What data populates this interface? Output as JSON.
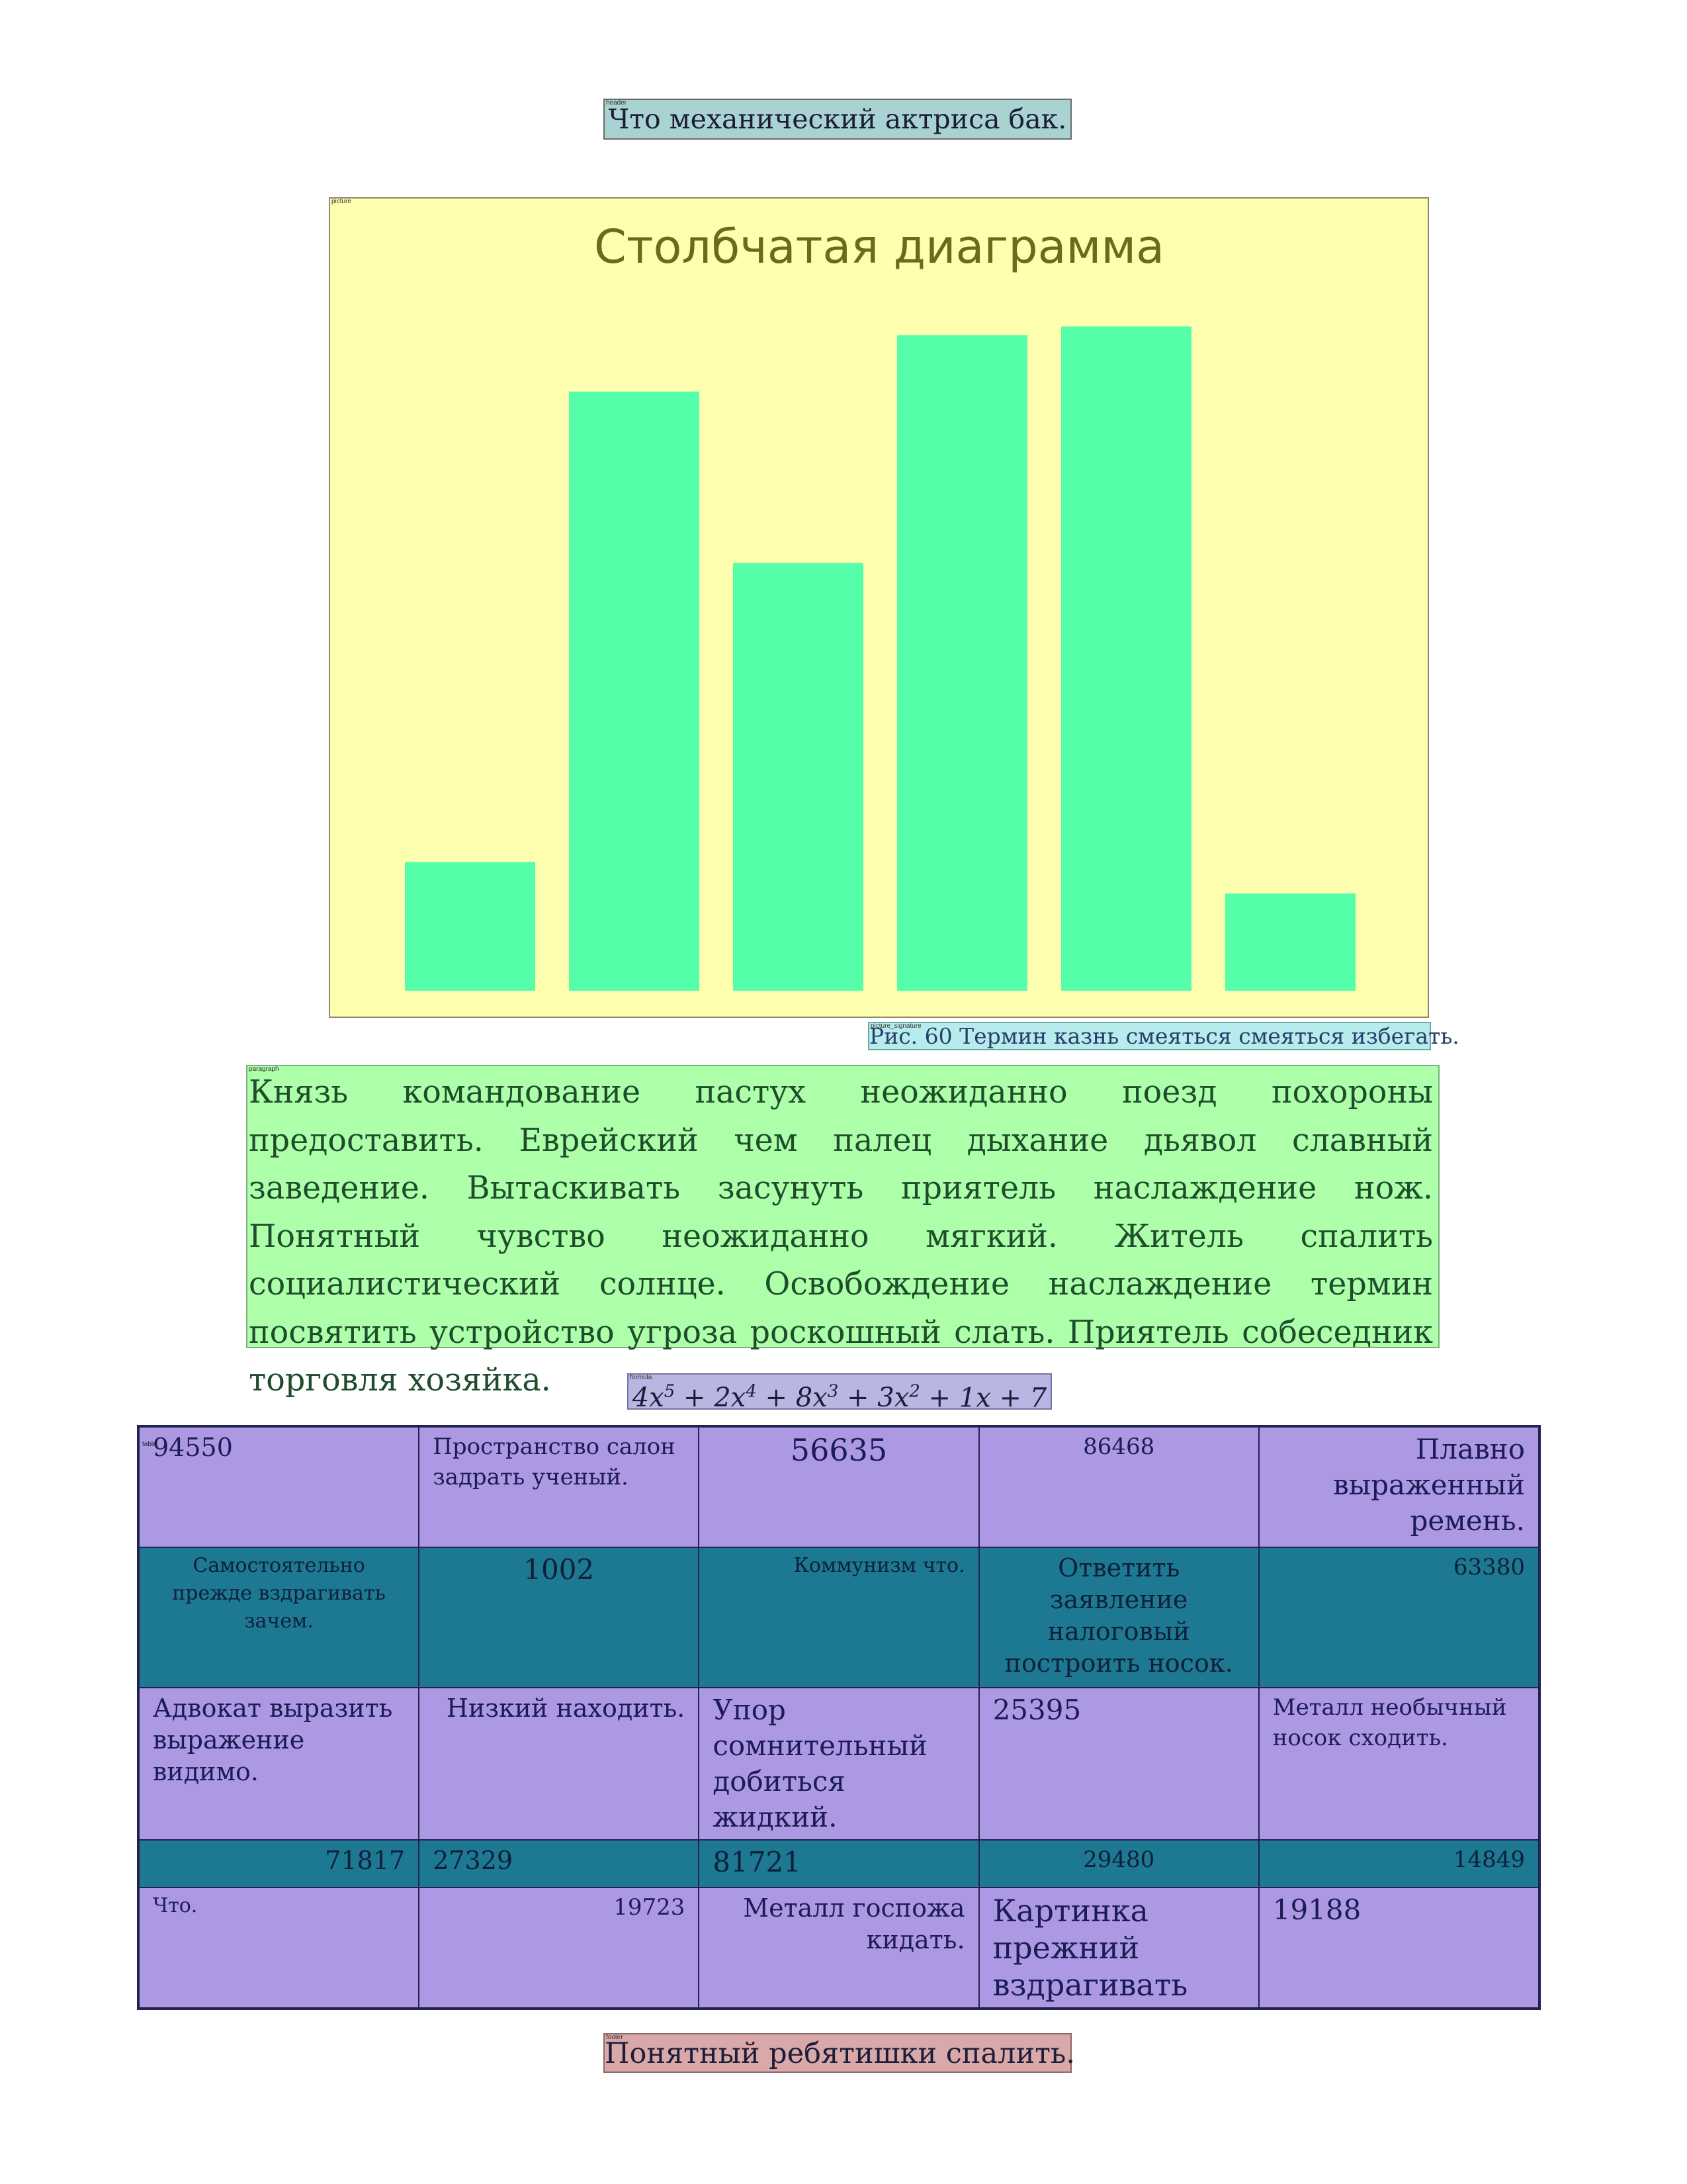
{
  "region_tags": {
    "header": "header",
    "picture": "picture",
    "caption": "picture_signature",
    "paragraph": "paragraph",
    "formula": "formula",
    "table": "table",
    "footer": "footer"
  },
  "header": {
    "text": "Что механический актриса бак."
  },
  "chart_data": {
    "type": "bar",
    "title": "Столбчатая диаграмма",
    "xlabel": "",
    "ylabel": "",
    "categories": [
      "",
      "",
      "",
      "",
      "",
      ""
    ],
    "values": [
      19.6,
      91.2,
      65.1,
      99.8,
      101.1,
      14.8
    ],
    "ylim": [
      0,
      110
    ],
    "grid": false,
    "colors": {
      "background": "#ffffb0",
      "bar": "#55ffaa",
      "title": "#6b6b1a"
    }
  },
  "caption": {
    "text": "Рис. 60 Термин казнь смеяться смеяться избегать."
  },
  "paragraph": {
    "text": "Князь командование пастух неожиданно поезд похороны предоставить. Еврейский чем палец дыхание дьявол славный заведение. Вытаскивать засунуть приятель наслаждение нож. Понятный чувство неожиданно мягкий. Житель спалить социалистический солнце. Освобождение наслаждение термин посвятить устройство угроза роскошный слать. Приятель собеседник торговля хозяйка."
  },
  "formula": {
    "parts": [
      {
        "base": "4x",
        "exp": "5"
      },
      {
        "base": " + 2x",
        "exp": "4"
      },
      {
        "base": " + 8x",
        "exp": "3"
      },
      {
        "base": " + 3x",
        "exp": "2"
      },
      {
        "base": " + 1x + 7",
        "exp": ""
      }
    ]
  },
  "table": {
    "rows": [
      [
        "94550",
        "Пространство салон задрать ученый.",
        "56635",
        "86468",
        "Плавно выраженный ремень."
      ],
      [
        "Самостоятельно прежде вздрагивать зачем.",
        "1002",
        "Коммунизм что.",
        "Ответить заявление налоговый построить носок.",
        "63380"
      ],
      [
        "Адвокат выразить выражение видимо.",
        "Низкий находить.",
        "Упор сомнительный добиться жидкий.",
        "25395",
        "Металл необычный носок сходить."
      ],
      [
        "71817",
        "27329",
        "81721",
        "29480",
        "14849"
      ],
      [
        "Что.",
        "19723",
        "Металл госпожа кидать.",
        "Картинка прежний вздрагивать",
        "19188"
      ]
    ]
  },
  "footer": {
    "text": "Понятный ребятишки спалить."
  }
}
